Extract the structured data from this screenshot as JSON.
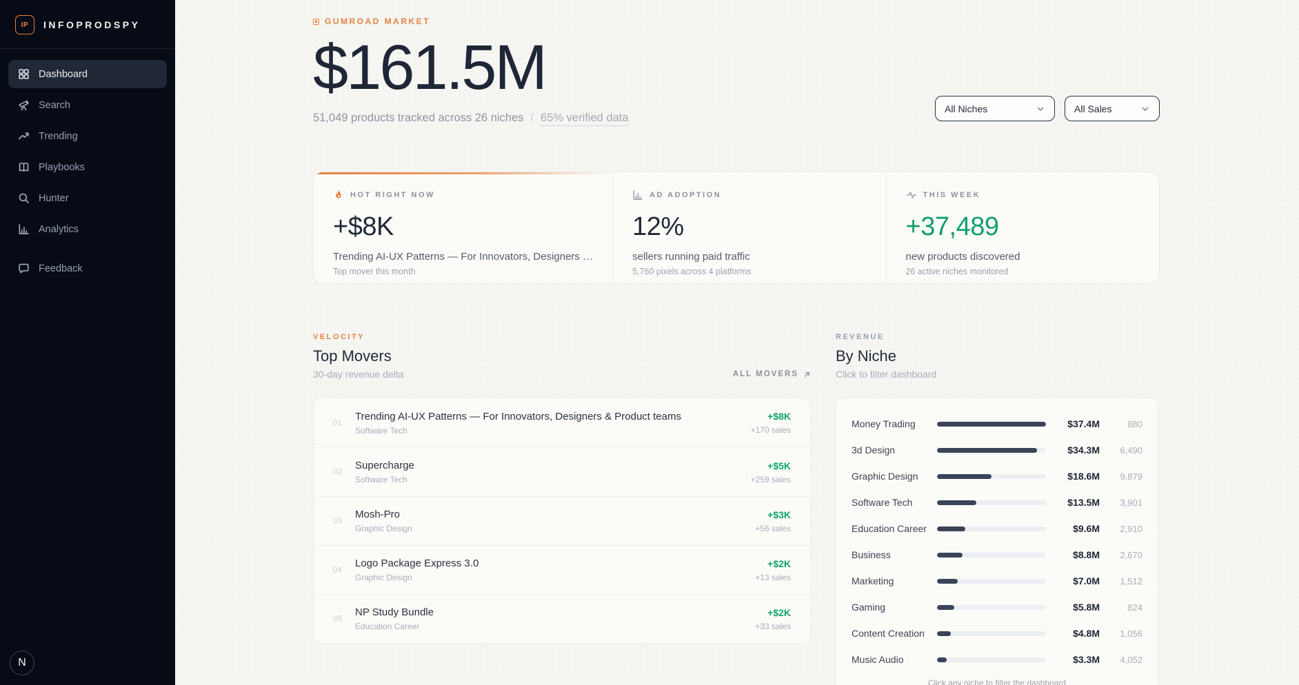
{
  "brand": {
    "logo": "IP",
    "name": "INFOPRODSPY"
  },
  "sidebar": {
    "items": [
      {
        "label": "Dashboard",
        "icon": "dashboard-grid-icon",
        "active": true,
        "separated": false
      },
      {
        "label": "Search",
        "icon": "telescope-icon",
        "active": false,
        "separated": false
      },
      {
        "label": "Trending",
        "icon": "trending-up-icon",
        "active": false,
        "separated": false
      },
      {
        "label": "Playbooks",
        "icon": "book-icon",
        "active": false,
        "separated": false
      },
      {
        "label": "Hunter",
        "icon": "magnifier-icon",
        "active": false,
        "separated": false
      },
      {
        "label": "Analytics",
        "icon": "bar-chart-icon",
        "active": false,
        "separated": false
      },
      {
        "label": "Feedback",
        "icon": "chat-bubble-icon",
        "active": false,
        "separated": true
      }
    ],
    "dev_badge": "N"
  },
  "header": {
    "eyebrow": "GUMROAD MARKET",
    "headline": "$161.5M",
    "subtitle": "51,049 products tracked across 26 niches",
    "subtitle_sep": "/",
    "subtitle_verified": "65% verified data",
    "filters": [
      {
        "value": "All Niches"
      },
      {
        "value": "All Sales"
      }
    ]
  },
  "stats": [
    {
      "icon": "flame-icon",
      "label": "HOT RIGHT NOW",
      "value": "+$8K",
      "value_class": "",
      "desc": "Trending AI-UX Patterns — For Innovators, Designers …",
      "note": "Top mover this month"
    },
    {
      "icon": "bar-chart-icon",
      "label": "AD ADOPTION",
      "value": "12%",
      "value_class": "",
      "desc": "sellers running paid traffic",
      "note": "5,760 pixels across 4 platforms"
    },
    {
      "icon": "pulse-icon",
      "label": "THIS WEEK",
      "value": "+37,489",
      "value_class": "green",
      "desc": "new products discovered",
      "note": "26 active niches monitored"
    }
  ],
  "movers": {
    "eyebrow": "VELOCITY",
    "title": "Top Movers",
    "subtitle": "30-day revenue delta",
    "link_label": "ALL MOVERS",
    "items": [
      {
        "rank": "01",
        "title": "Trending AI-UX Patterns — For Innovators, Designers & Product teams",
        "category": "Software Tech",
        "delta": "+$8K",
        "sales": "+170 sales"
      },
      {
        "rank": "02",
        "title": "Supercharge",
        "category": "Software Tech",
        "delta": "+$5K",
        "sales": "+259 sales"
      },
      {
        "rank": "03",
        "title": "Mosh-Pro",
        "category": "Graphic Design",
        "delta": "+$3K",
        "sales": "+56 sales"
      },
      {
        "rank": "04",
        "title": "Logo Package Express 3.0",
        "category": "Graphic Design",
        "delta": "+$2K",
        "sales": "+13 sales"
      },
      {
        "rank": "05",
        "title": "NP Study Bundle",
        "category": "Education Career",
        "delta": "+$2K",
        "sales": "+33 sales"
      }
    ]
  },
  "niches": {
    "eyebrow": "REVENUE",
    "title": "By Niche",
    "subtitle": "Click to filter dashboard",
    "footer": "Click any niche to filter the dashboard",
    "max_value": 37.4,
    "items": [
      {
        "name": "Money Trading",
        "revenue": "$37.4M",
        "value": 37.4,
        "count": "880"
      },
      {
        "name": "3d Design",
        "revenue": "$34.3M",
        "value": 34.3,
        "count": "6,490"
      },
      {
        "name": "Graphic Design",
        "revenue": "$18.6M",
        "value": 18.6,
        "count": "9,879"
      },
      {
        "name": "Software Tech",
        "revenue": "$13.5M",
        "value": 13.5,
        "count": "3,901"
      },
      {
        "name": "Education Career",
        "revenue": "$9.6M",
        "value": 9.6,
        "count": "2,910"
      },
      {
        "name": "Business",
        "revenue": "$8.8M",
        "value": 8.8,
        "count": "2,670"
      },
      {
        "name": "Marketing",
        "revenue": "$7.0M",
        "value": 7.0,
        "count": "1,512"
      },
      {
        "name": "Gaming",
        "revenue": "$5.8M",
        "value": 5.8,
        "count": "824"
      },
      {
        "name": "Content Creation",
        "revenue": "$4.8M",
        "value": 4.8,
        "count": "1,056"
      },
      {
        "name": "Music Audio",
        "revenue": "$3.3M",
        "value": 3.3,
        "count": "4,052"
      }
    ]
  },
  "colors": {
    "accent_orange": "#e8823f",
    "green": "#129e6c",
    "navy": "#232a3a"
  }
}
